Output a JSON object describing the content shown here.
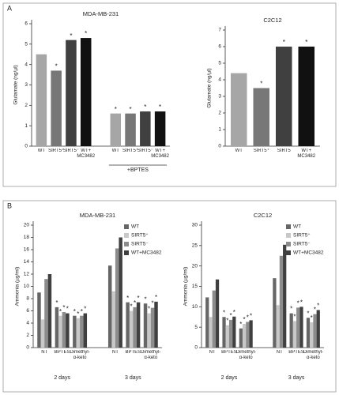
{
  "panel_labels": [
    "A",
    "B"
  ],
  "chart_data": [
    {
      "type": "bar",
      "title": "MDA-MB-231",
      "ylabel": "Glutamate (ng/µl)",
      "categories": [
        "WT",
        "SIRT5⁺",
        "SIRT5⁻",
        "WT+ MC3482",
        "WT",
        "SIRT5⁺",
        "SIRT5⁻",
        "WT+ MC3482"
      ],
      "values": [
        4.5,
        3.7,
        5.2,
        5.3,
        1.6,
        1.6,
        1.7,
        1.7
      ],
      "colors": [
        "#a6a6a6",
        "#777777",
        "#404040",
        "#111111",
        "#a6a6a6",
        "#777777",
        "#404040",
        "#111111"
      ],
      "significant": [
        false,
        true,
        true,
        true,
        true,
        true,
        true,
        true
      ],
      "sig_mark": "*",
      "group_labels": [
        "+BPTES"
      ],
      "ylim": [
        0,
        6
      ],
      "yticks": [
        0,
        1,
        2,
        3,
        4,
        5,
        6
      ]
    },
    {
      "type": "bar",
      "title": "C2C12",
      "ylabel": "Glutamate (ng/µl)",
      "categories": [
        "WT",
        "SIRT5⁺",
        "SIRT5",
        "WT+ MC3482"
      ],
      "values": [
        4.4,
        3.5,
        6.0,
        6.0
      ],
      "colors": [
        "#a6a6a6",
        "#777777",
        "#404040",
        "#111111"
      ],
      "significant": [
        false,
        true,
        true,
        true
      ],
      "sig_mark": "*",
      "ylim": [
        0,
        7
      ],
      "yticks": [
        0,
        1,
        2,
        3,
        4,
        5,
        6,
        7
      ]
    },
    {
      "type": "bar",
      "title": "MDA-MB-231",
      "ylabel": "Ammonia (µg/ml)",
      "categories": [
        "NT",
        "BPTES",
        "Dimethyl-α-keto",
        "NT",
        "BPTES",
        "Dimethyl-α-keto"
      ],
      "group_labels": [
        "2 days",
        "3 days"
      ],
      "series": [
        {
          "name": "WT",
          "color": "#666666",
          "values": [
            9,
            6.6,
            5.2,
            13.4,
            7.4,
            7.2
          ],
          "significant": [
            false,
            true,
            true,
            false,
            true,
            true
          ]
        },
        {
          "name": "SIRT5⁺",
          "color": "#c8c8c8",
          "values": [
            4.6,
            5.2,
            4.8,
            9.2,
            6,
            5.6
          ],
          "significant": [
            false,
            true,
            true,
            false,
            true,
            true
          ]
        },
        {
          "name": "SIRT5⁻",
          "color": "#8c8c8c",
          "values": [
            11.2,
            5.8,
            5.2,
            16.2,
            6.6,
            6.5
          ],
          "significant": [
            false,
            true,
            true,
            false,
            true,
            true
          ]
        },
        {
          "name": "WT+MC3482",
          "color": "#404040",
          "values": [
            12,
            5.6,
            5.6,
            18,
            7.4,
            7.5
          ],
          "significant": [
            false,
            true,
            true,
            false,
            true,
            true
          ]
        }
      ],
      "sig_mark": "*",
      "legend": "upper right",
      "ylim": [
        0,
        20
      ],
      "yticks": [
        0,
        2,
        4,
        6,
        8,
        10,
        12,
        14,
        16,
        18,
        20
      ]
    },
    {
      "type": "bar",
      "title": "C2C12",
      "ylabel": "Ammonia (µg/ml)",
      "categories": [
        "NT",
        "BPTES",
        "Dimethyl-α-keto",
        "NT",
        "BPTES",
        "Dimethyl-α-keto"
      ],
      "group_labels": [
        "2 days",
        "3 days"
      ],
      "series": [
        {
          "name": "WT",
          "color": "#666666",
          "values": [
            12.3,
            7.5,
            4.7,
            17,
            8.4,
            7.3
          ],
          "significant": [
            false,
            true,
            true,
            false,
            true,
            true
          ]
        },
        {
          "name": "SIRT5⁺",
          "color": "#c8c8c8",
          "values": [
            7.5,
            5.5,
            5.8,
            10.4,
            6.5,
            6.2
          ],
          "significant": [
            false,
            true,
            true,
            false,
            true,
            true
          ]
        },
        {
          "name": "SIRT5⁻",
          "color": "#8c8c8c",
          "values": [
            14,
            6.8,
            6.3,
            22.5,
            9.8,
            8.2
          ],
          "significant": [
            false,
            true,
            true,
            false,
            true,
            true
          ]
        },
        {
          "name": "WT+MC3482",
          "color": "#404040",
          "values": [
            16.7,
            7.6,
            6.7,
            25.2,
            10,
            9.2
          ],
          "significant": [
            false,
            true,
            true,
            false,
            true,
            true
          ]
        }
      ],
      "sig_mark": "*",
      "legend": "upper right",
      "ylim": [
        0,
        30
      ],
      "yticks": [
        0,
        5,
        10,
        15,
        20,
        25,
        30
      ]
    }
  ]
}
